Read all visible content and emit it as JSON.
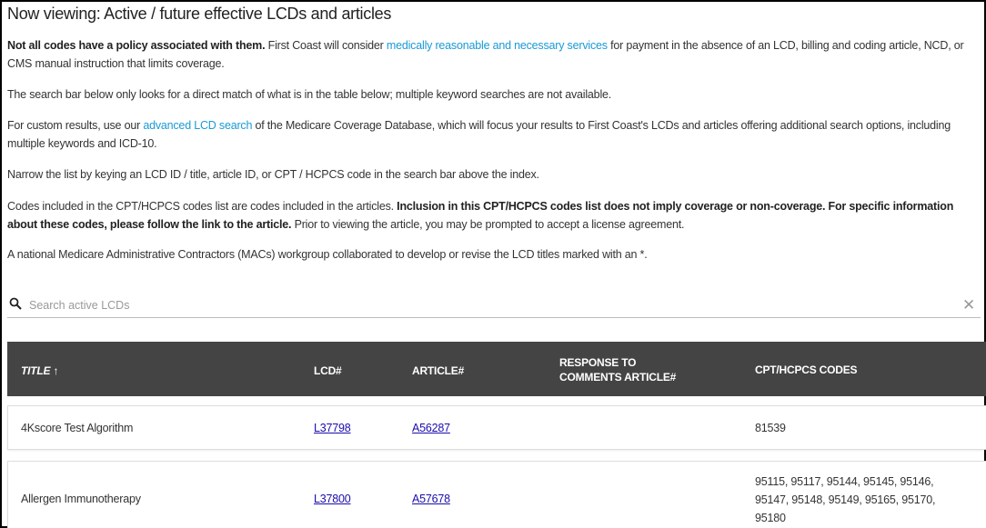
{
  "title": "Now viewing: Active / future effective LCDs and articles",
  "p1": {
    "bold": "Not all codes have a policy associated with them.",
    "pre": " First Coast will consider ",
    "link": "medically reasonable and necessary services",
    "post": " for payment in the absence of an LCD, billing and coding article, NCD, or CMS manual instruction that limits coverage."
  },
  "p2": "The search bar below only looks for a direct match of what is in the table below; multiple keyword searches are not available.",
  "p3": {
    "pre": "For custom results, use our ",
    "link": "advanced LCD search",
    "post": " of the Medicare Coverage Database, which will focus your results to First Coast's LCDs and articles offering additional search options, including multiple keywords and ICD-10."
  },
  "p4": "Narrow the list by keying an LCD ID / title, article ID, or CPT / HCPCS code in the search bar above the index.",
  "p5": {
    "pre": "Codes included in the CPT/HCPCS codes list are codes included in the articles. ",
    "bold": "Inclusion in this CPT/HCPCS codes list does not imply coverage or non-coverage. For specific information about these codes, please follow the link to the article.",
    "post": " Prior to viewing the article, you may be prompted to accept a license agreement."
  },
  "p6": "A national Medicare Administrative Contractors (MACs) workgroup collaborated to develop or revise the LCD titles marked with an *.",
  "search": {
    "placeholder": "Search active LCDs",
    "value": ""
  },
  "table": {
    "headers": {
      "title": "TITLE",
      "sort": "↑",
      "lcd": "LCD#",
      "article": "ARTICLE#",
      "response": "RESPONSE TO COMMENTS ARTICLE#",
      "codes": "CPT/HCPCS CODES"
    },
    "rows": [
      {
        "title": "4Kscore Test Algorithm",
        "lcd": "L37798",
        "article": "A56287",
        "response": "",
        "codes": "81539"
      },
      {
        "title": "Allergen Immunotherapy",
        "lcd": "L37800",
        "article": "A57678",
        "response": "",
        "codes": "95115, 95117, 95144, 95145, 95146, 95147, 95148, 95149, 95165, 95170, 95180"
      }
    ]
  }
}
